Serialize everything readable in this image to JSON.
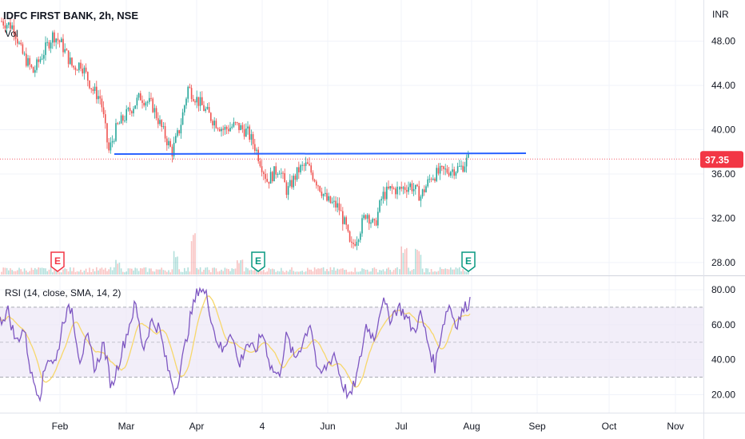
{
  "colors": {
    "up": "#26a69a",
    "down": "#ef5350",
    "trendline": "#2962ff",
    "rsi": "#7e57c2",
    "rsi_ma": "#f7d76b",
    "rsi_band": "#ede7f6",
    "price_tag": "#f23645",
    "earnings_red": "#f23645",
    "earnings_green": "#089981",
    "grid": "#f0f3fa",
    "axis_text": "#131722"
  },
  "chart_data": [
    {
      "type": "candlestick",
      "title": "IDFC FIRST BANK, 2h, NSE",
      "volume_label": "Vol",
      "currency": "INR",
      "y_ticks": [
        "48.00",
        "44.00",
        "40.00",
        "36.00",
        "32.00",
        "28.00"
      ],
      "ylim": [
        27.2,
        51.0
      ],
      "last_price": "37.35",
      "x_labels": [
        "Feb",
        "Mar",
        "Apr",
        "4",
        "Jun",
        "Jul",
        "Aug",
        "Sep",
        "Oct",
        "Nov"
      ],
      "price_path": [
        {
          "t": 0.0,
          "v": 49.8
        },
        {
          "t": 0.03,
          "v": 49.3
        },
        {
          "t": 0.05,
          "v": 47.0
        },
        {
          "t": 0.08,
          "v": 45.2
        },
        {
          "t": 0.1,
          "v": 46.6
        },
        {
          "t": 0.13,
          "v": 48.6
        },
        {
          "t": 0.15,
          "v": 47.8
        },
        {
          "t": 0.18,
          "v": 45.6
        },
        {
          "t": 0.2,
          "v": 46.0
        },
        {
          "t": 0.23,
          "v": 43.6
        },
        {
          "t": 0.25,
          "v": 42.8
        },
        {
          "t": 0.27,
          "v": 38.0
        },
        {
          "t": 0.29,
          "v": 40.2
        },
        {
          "t": 0.32,
          "v": 41.6
        },
        {
          "t": 0.35,
          "v": 43.0
        },
        {
          "t": 0.38,
          "v": 42.2
        },
        {
          "t": 0.41,
          "v": 39.6
        },
        {
          "t": 0.43,
          "v": 38.0
        },
        {
          "t": 0.45,
          "v": 40.2
        },
        {
          "t": 0.47,
          "v": 43.8
        },
        {
          "t": 0.5,
          "v": 42.4
        },
        {
          "t": 0.53,
          "v": 41.0
        },
        {
          "t": 0.56,
          "v": 40.0
        },
        {
          "t": 0.59,
          "v": 40.4
        },
        {
          "t": 0.62,
          "v": 39.8
        },
        {
          "t": 0.64,
          "v": 38.4
        },
        {
          "t": 0.67,
          "v": 35.4
        },
        {
          "t": 0.7,
          "v": 36.6
        },
        {
          "t": 0.72,
          "v": 34.4
        },
        {
          "t": 0.75,
          "v": 36.4
        },
        {
          "t": 0.77,
          "v": 36.8
        },
        {
          "t": 0.8,
          "v": 35.0
        },
        {
          "t": 0.82,
          "v": 33.6
        },
        {
          "t": 0.85,
          "v": 33.0
        },
        {
          "t": 0.87,
          "v": 31.0
        },
        {
          "t": 0.88,
          "v": 29.2
        },
        {
          "t": 0.9,
          "v": 30.6
        },
        {
          "t": 0.92,
          "v": 32.6
        },
        {
          "t": 0.94,
          "v": 31.2
        },
        {
          "t": 0.96,
          "v": 34.0
        },
        {
          "t": 0.98,
          "v": 34.6
        },
        {
          "t": 1.0,
          "v": 34.6
        }
      ],
      "price_path_2": [
        {
          "t": 0.0,
          "v": 34.6
        },
        {
          "t": 0.15,
          "v": 35.0
        },
        {
          "t": 0.3,
          "v": 34.0
        },
        {
          "t": 0.45,
          "v": 35.8
        },
        {
          "t": 0.6,
          "v": 36.2
        },
        {
          "t": 0.75,
          "v": 36.4
        },
        {
          "t": 0.88,
          "v": 36.6
        },
        {
          "t": 1.0,
          "v": 37.6
        }
      ],
      "volume_spikes": [
        {
          "t": 0.41,
          "v": 1.0
        },
        {
          "t": 0.375,
          "v": 0.55
        },
        {
          "t": 0.25,
          "v": 0.35
        },
        {
          "t": 0.86,
          "v": 0.7
        },
        {
          "t": 0.89,
          "v": 0.6
        },
        {
          "t": 0.51,
          "v": 0.35
        }
      ],
      "earnings": [
        {
          "label": "E",
          "position": "Feb",
          "color": "red"
        },
        {
          "label": "E",
          "position": "4",
          "color": "green"
        },
        {
          "label": "E",
          "position": "Aug",
          "color": "green"
        }
      ],
      "trendline": {
        "from_date": "late Feb",
        "to_date": "mid Aug",
        "price": 37.8
      }
    },
    {
      "type": "line",
      "title": "RSI (14, close, SMA, 14, 2)",
      "y_ticks": [
        "80.00",
        "60.00",
        "40.00",
        "20.00"
      ],
      "ylim": [
        12,
        85
      ],
      "bands": [
        30,
        50,
        70
      ],
      "rsi_path": [
        {
          "t": 0.0,
          "v": 62
        },
        {
          "t": 0.02,
          "v": 68
        },
        {
          "t": 0.04,
          "v": 50
        },
        {
          "t": 0.06,
          "v": 58
        },
        {
          "t": 0.08,
          "v": 30
        },
        {
          "t": 0.1,
          "v": 20
        },
        {
          "t": 0.12,
          "v": 42
        },
        {
          "t": 0.14,
          "v": 38
        },
        {
          "t": 0.16,
          "v": 64
        },
        {
          "t": 0.18,
          "v": 70
        },
        {
          "t": 0.2,
          "v": 40
        },
        {
          "t": 0.22,
          "v": 52
        },
        {
          "t": 0.24,
          "v": 34
        },
        {
          "t": 0.26,
          "v": 50
        },
        {
          "t": 0.28,
          "v": 24
        },
        {
          "t": 0.3,
          "v": 40
        },
        {
          "t": 0.32,
          "v": 56
        },
        {
          "t": 0.34,
          "v": 72
        },
        {
          "t": 0.36,
          "v": 46
        },
        {
          "t": 0.38,
          "v": 62
        },
        {
          "t": 0.4,
          "v": 58
        },
        {
          "t": 0.42,
          "v": 36
        },
        {
          "t": 0.44,
          "v": 22
        },
        {
          "t": 0.46,
          "v": 42
        },
        {
          "t": 0.48,
          "v": 66
        },
        {
          "t": 0.5,
          "v": 82
        },
        {
          "t": 0.52,
          "v": 76
        },
        {
          "t": 0.54,
          "v": 54
        },
        {
          "t": 0.56,
          "v": 44
        },
        {
          "t": 0.58,
          "v": 58
        },
        {
          "t": 0.6,
          "v": 36
        },
        {
          "t": 0.62,
          "v": 50
        },
        {
          "t": 0.64,
          "v": 44
        },
        {
          "t": 0.66,
          "v": 56
        },
        {
          "t": 0.68,
          "v": 36
        },
        {
          "t": 0.7,
          "v": 30
        },
        {
          "t": 0.72,
          "v": 54
        },
        {
          "t": 0.74,
          "v": 40
        },
        {
          "t": 0.76,
          "v": 50
        },
        {
          "t": 0.78,
          "v": 62
        },
        {
          "t": 0.8,
          "v": 30
        },
        {
          "t": 0.82,
          "v": 36
        },
        {
          "t": 0.84,
          "v": 44
        },
        {
          "t": 0.86,
          "v": 26
        },
        {
          "t": 0.88,
          "v": 18
        },
        {
          "t": 0.9,
          "v": 34
        },
        {
          "t": 0.92,
          "v": 60
        },
        {
          "t": 0.94,
          "v": 52
        },
        {
          "t": 0.96,
          "v": 74
        },
        {
          "t": 0.98,
          "v": 64
        },
        {
          "t": 1.0,
          "v": 70
        }
      ],
      "rsi_path_2": [
        {
          "t": 0.0,
          "v": 70
        },
        {
          "t": 0.1,
          "v": 64
        },
        {
          "t": 0.2,
          "v": 56
        },
        {
          "t": 0.3,
          "v": 66
        },
        {
          "t": 0.4,
          "v": 50
        },
        {
          "t": 0.5,
          "v": 36
        },
        {
          "t": 0.6,
          "v": 58
        },
        {
          "t": 0.7,
          "v": 72
        },
        {
          "t": 0.8,
          "v": 60
        },
        {
          "t": 0.9,
          "v": 68
        },
        {
          "t": 1.0,
          "v": 74
        }
      ]
    }
  ]
}
